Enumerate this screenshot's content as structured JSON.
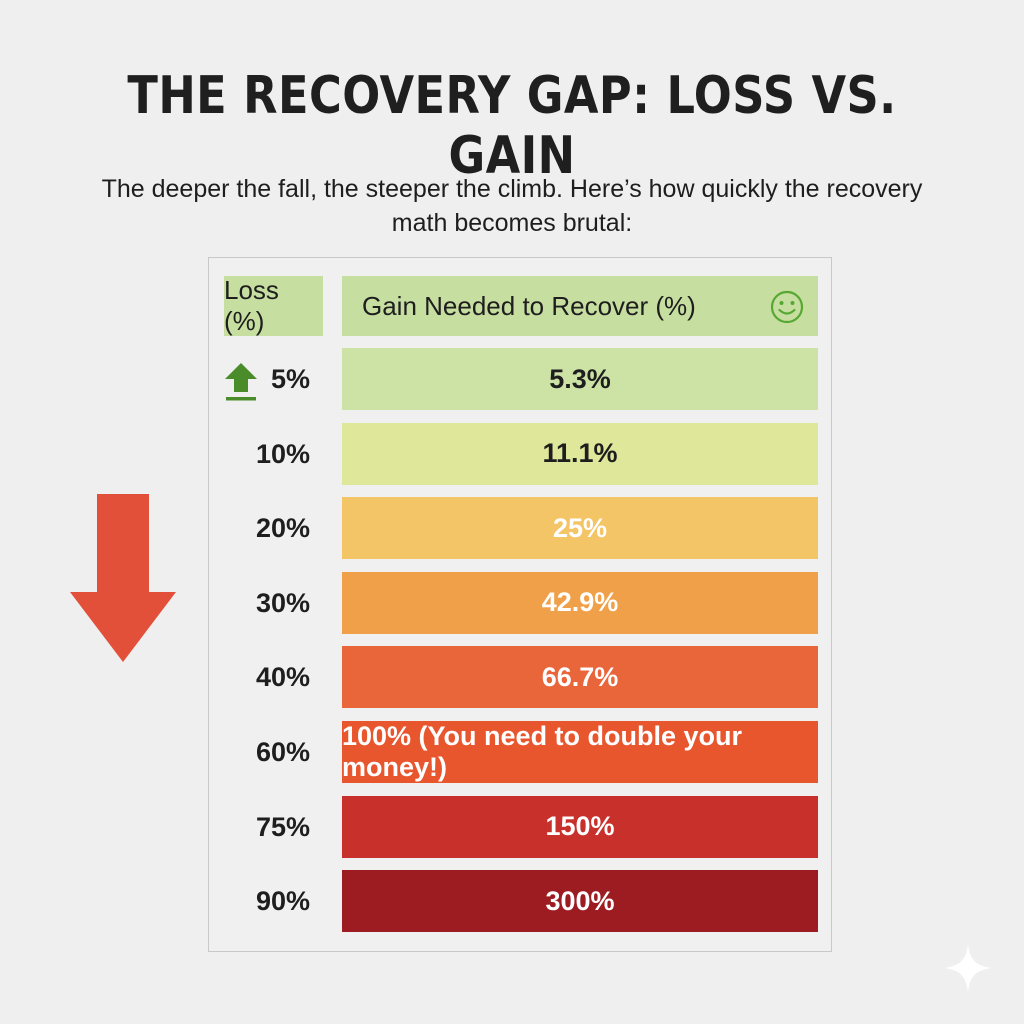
{
  "title": "THE RECOVERY GAP: LOSS VS. GAIN",
  "subtitle": "The deeper the fall, the steeper the climb. Here’s how quickly the recovery math becomes brutal:",
  "headers": {
    "loss": "Loss (%)",
    "gain": "Gain Needed to Recover (%)"
  },
  "icons": {
    "header": "smiley-icon",
    "top": "up-arrow-icon",
    "side": "down-arrow-icon",
    "corner": "sparkle-icon"
  },
  "colors": {
    "up_arrow": "#4a8c2a",
    "down_arrow": "#e3503a",
    "smiley": "#56a832",
    "header_bg": "#c7dea1"
  },
  "rows": [
    {
      "loss": "5%",
      "gain": "5.3%",
      "color": "#cde3a6",
      "text_color": "#1e1e1e"
    },
    {
      "loss": "10%",
      "gain": "11.1%",
      "color": "#dfe79a",
      "text_color": "#1e1e1e"
    },
    {
      "loss": "20%",
      "gain": "25%",
      "color": "#f4c566",
      "text_color": "#ffffff"
    },
    {
      "loss": "30%",
      "gain": "42.9%",
      "color": "#f0a048",
      "text_color": "#ffffff"
    },
    {
      "loss": "40%",
      "gain": "66.7%",
      "color": "#e9653a",
      "text_color": "#ffffff"
    },
    {
      "loss": "60%",
      "gain": "100%  (You need to double your money!)",
      "color": "#e8562e",
      "text_color": "#ffffff"
    },
    {
      "loss": "75%",
      "gain": "150%",
      "color": "#c8302c",
      "text_color": "#ffffff"
    },
    {
      "loss": "90%",
      "gain": "300%",
      "color": "#9d1c22",
      "text_color": "#ffffff"
    }
  ],
  "chart_data": {
    "type": "table",
    "title": "THE RECOVERY GAP: LOSS VS. GAIN",
    "columns": [
      "Loss (%)",
      "Gain Needed to Recover (%)"
    ],
    "x": [
      5,
      10,
      20,
      30,
      40,
      60,
      75,
      90
    ],
    "values": [
      5.3,
      11.1,
      25,
      42.9,
      66.7,
      100,
      150,
      300
    ]
  }
}
